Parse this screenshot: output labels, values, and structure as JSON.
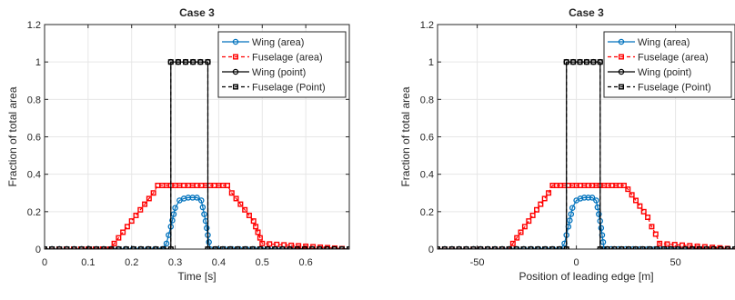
{
  "chart_data": [
    {
      "type": "line",
      "title": "Case 3",
      "xlabel": "Time [s]",
      "ylabel": "Fraction of total area",
      "xlim": [
        0,
        0.7
      ],
      "ylim": [
        0,
        1.2
      ],
      "xticks": [
        0,
        0.1,
        0.2,
        0.3,
        0.4,
        0.5,
        0.6
      ],
      "xtick_labels": [
        "0",
        "0.1",
        "0.2",
        "0.3",
        "0.4",
        "0.5",
        "0.6"
      ],
      "yticks": [
        0,
        0.2,
        0.4,
        0.6,
        0.8,
        1,
        1.2
      ],
      "ytick_labels": [
        "0",
        "0.2",
        "0.4",
        "0.6",
        "0.8",
        "1",
        "1.2"
      ],
      "grid": true,
      "legend_position": "top-right",
      "series": [
        {
          "name": "Wing (area)",
          "color": "#0072BD",
          "marker": "circle",
          "line": "solid",
          "x": [
            0,
            0.27,
            0.28,
            0.29,
            0.3,
            0.31,
            0.32,
            0.33,
            0.34,
            0.35,
            0.36,
            0.37,
            0.38,
            0.7
          ],
          "y": [
            0,
            0,
            0.03,
            0.12,
            0.22,
            0.26,
            0.27,
            0.275,
            0.275,
            0.275,
            0.26,
            0.15,
            0,
            0
          ]
        },
        {
          "name": "Fuselage (area)",
          "color": "#FF0000",
          "marker": "square",
          "line": "dashed",
          "x": [
            0,
            0.15,
            0.16,
            0.17,
            0.18,
            0.19,
            0.2,
            0.21,
            0.22,
            0.23,
            0.24,
            0.25,
            0.26,
            0.27,
            0.28,
            0.29,
            0.3,
            0.31,
            0.32,
            0.33,
            0.34,
            0.35,
            0.36,
            0.37,
            0.38,
            0.39,
            0.4,
            0.41,
            0.42,
            0.43,
            0.44,
            0.45,
            0.46,
            0.47,
            0.48,
            0.49,
            0.5,
            0.7
          ],
          "y": [
            0,
            0,
            0.03,
            0.06,
            0.09,
            0.12,
            0.15,
            0.18,
            0.21,
            0.24,
            0.27,
            0.3,
            0.34,
            0.34,
            0.34,
            0.34,
            0.34,
            0.34,
            0.34,
            0.34,
            0.34,
            0.34,
            0.34,
            0.34,
            0.34,
            0.34,
            0.34,
            0.34,
            0.34,
            0.3,
            0.27,
            0.24,
            0.21,
            0.18,
            0.15,
            0.09,
            0.03,
            0
          ]
        },
        {
          "name": "Wing (point)",
          "color": "#000000",
          "marker": "circle",
          "line": "solid",
          "x": [
            0,
            0.29,
            0.29,
            0.375,
            0.375,
            0.7
          ],
          "y": [
            0,
            0,
            1,
            1,
            0,
            0
          ]
        },
        {
          "name": "Fuselage (Point)",
          "color": "#000000",
          "marker": "square",
          "line": "dashed",
          "x": [
            0,
            0.29,
            0.29,
            0.375,
            0.375,
            0.7
          ],
          "y": [
            0,
            0,
            1,
            1,
            0,
            0
          ]
        }
      ]
    },
    {
      "type": "line",
      "title": "Case 3",
      "xlabel": "Position of leading edge [m]",
      "ylabel": "Fraction of total area",
      "xlim": [
        -70,
        80
      ],
      "ylim": [
        0,
        1.2
      ],
      "xticks": [
        -50,
        0,
        50
      ],
      "xtick_labels": [
        "-50",
        "0",
        "50"
      ],
      "yticks": [
        0,
        0.2,
        0.4,
        0.6,
        0.8,
        1,
        1.2
      ],
      "ytick_labels": [
        "0",
        "0.2",
        "0.4",
        "0.6",
        "0.8",
        "1",
        "1.2"
      ],
      "grid": true,
      "legend_position": "top-right",
      "series": [
        {
          "name": "Wing (area)",
          "color": "#0072BD",
          "marker": "circle",
          "line": "solid",
          "x": [
            -70,
            -8,
            -6,
            -4,
            -2,
            0,
            2,
            4,
            6,
            8,
            10,
            12,
            14,
            80
          ],
          "y": [
            0,
            0,
            0.03,
            0.12,
            0.22,
            0.26,
            0.27,
            0.275,
            0.275,
            0.275,
            0.26,
            0.15,
            0,
            0
          ]
        },
        {
          "name": "Fuselage (area)",
          "color": "#FF0000",
          "marker": "square",
          "line": "dashed",
          "x": [
            -70,
            -34,
            -32,
            -30,
            -28,
            -26,
            -24,
            -22,
            -20,
            -18,
            -16,
            -14,
            -12,
            -10,
            -8,
            -6,
            -4,
            -2,
            0,
            2,
            4,
            6,
            8,
            10,
            12,
            14,
            16,
            18,
            20,
            22,
            24,
            26,
            28,
            30,
            32,
            34,
            36,
            38,
            40,
            42,
            80
          ],
          "y": [
            0,
            0,
            0.03,
            0.06,
            0.09,
            0.12,
            0.15,
            0.18,
            0.21,
            0.24,
            0.27,
            0.3,
            0.34,
            0.34,
            0.34,
            0.34,
            0.34,
            0.34,
            0.34,
            0.34,
            0.34,
            0.34,
            0.34,
            0.34,
            0.34,
            0.34,
            0.34,
            0.34,
            0.34,
            0.34,
            0.34,
            0.32,
            0.29,
            0.26,
            0.23,
            0.2,
            0.17,
            0.12,
            0.08,
            0.03,
            0
          ]
        },
        {
          "name": "Wing (point)",
          "color": "#000000",
          "marker": "circle",
          "line": "solid",
          "x": [
            -70,
            -5,
            -5,
            12,
            12,
            80
          ],
          "y": [
            0,
            0,
            1,
            1,
            0,
            0
          ]
        },
        {
          "name": "Fuselage (Point)",
          "color": "#000000",
          "marker": "square",
          "line": "dashed",
          "x": [
            -70,
            -5,
            -5,
            12,
            12,
            80
          ],
          "y": [
            0,
            0,
            1,
            1,
            0,
            0
          ]
        }
      ]
    }
  ]
}
